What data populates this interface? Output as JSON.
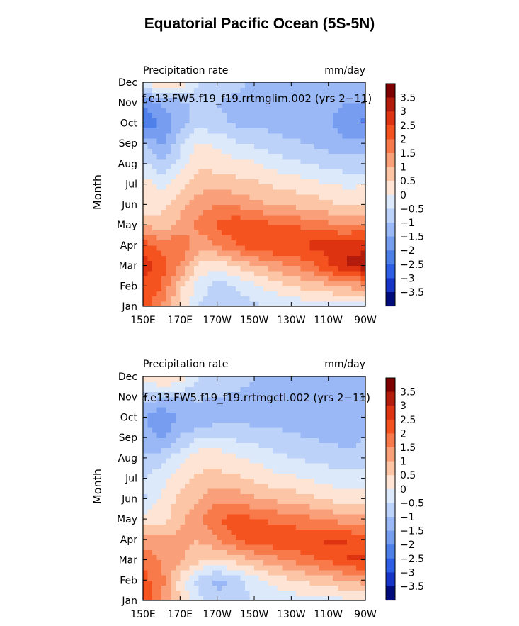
{
  "title": "Equatorial Pacific Ocean (5S-5N)",
  "colorbar": {
    "levels": [
      -3.5,
      -3,
      -2.5,
      -2,
      -1.5,
      -1,
      -0.5,
      0,
      0.5,
      1,
      1.5,
      2,
      2.5,
      3,
      3.5
    ],
    "labels": [
      "3.5",
      "3",
      "2.5",
      "2",
      "1.5",
      "1",
      "0.5",
      "0",
      "−0.5",
      "−1",
      "−1.5",
      "−2",
      "−2.5",
      "−3",
      "−3.5"
    ],
    "colors": [
      "#7f0000",
      "#b31b0c",
      "#dd3311",
      "#f4521f",
      "#f87a4a",
      "#f9a07a",
      "#fbc5a6",
      "#fde4d4",
      "#dce9fb",
      "#bcd2f9",
      "#9ab8f5",
      "#779df0",
      "#4f7fe9",
      "#2d5ee5",
      "#1734c7",
      "#000c7b"
    ]
  },
  "chart_data": [
    {
      "type": "heatmap",
      "subtitle": "f.e13.FW5.f19_f19.rrtmglim.002 (yrs 2−11)",
      "left_label": "Precipitation rate",
      "right_label": "mm/day",
      "ylabel": "Month",
      "x_ticks": [
        "150E",
        "170E",
        "170W",
        "150W",
        "130W",
        "110W",
        "90W"
      ],
      "y_ticks": [
        "Jan",
        "Feb",
        "Mar",
        "Apr",
        "May",
        "Jun",
        "Jul",
        "Aug",
        "Sep",
        "Oct",
        "Nov",
        "Dec"
      ],
      "x_lon": [
        150,
        160,
        170,
        180,
        190,
        200,
        210,
        220,
        230,
        240,
        250,
        260,
        270
      ],
      "values": [
        [
          2.2,
          1.6,
          0.4,
          -0.5,
          -0.8,
          -0.8,
          -0.6,
          -0.5,
          -0.4,
          -0.3,
          -0.3,
          -0.2,
          -0.2
        ],
        [
          2.4,
          2.0,
          0.6,
          -0.2,
          -0.7,
          -0.5,
          -0.1,
          0.2,
          0.5,
          0.7,
          0.9,
          1.1,
          1.3
        ],
        [
          2.8,
          2.2,
          1.5,
          0.4,
          0.2,
          0.5,
          0.9,
          1.2,
          1.5,
          1.8,
          2.4,
          3.1,
          3.3
        ],
        [
          2.2,
          1.8,
          2.0,
          1.2,
          1.5,
          2.0,
          2.3,
          2.5,
          2.5,
          2.6,
          2.7,
          2.8,
          2.9
        ],
        [
          1.0,
          0.6,
          1.2,
          1.6,
          2.1,
          2.4,
          2.3,
          2.1,
          2.0,
          1.8,
          1.6,
          1.5,
          1.5
        ],
        [
          0.1,
          0.4,
          0.8,
          1.3,
          1.5,
          1.4,
          1.2,
          1.0,
          0.9,
          0.8,
          0.6,
          0.4,
          0.4
        ],
        [
          0.3,
          -0.2,
          0.3,
          0.8,
          0.8,
          0.7,
          0.6,
          0.4,
          0.3,
          0.2,
          0.0,
          -0.1,
          0.0
        ],
        [
          -0.4,
          -0.9,
          -0.3,
          0.4,
          0.3,
          0.2,
          0.1,
          -0.2,
          -0.4,
          -0.5,
          -0.7,
          -0.8,
          -0.8
        ],
        [
          -1.0,
          -1.6,
          -0.6,
          0.1,
          -0.1,
          -0.4,
          -0.6,
          -0.8,
          -0.9,
          -1.0,
          -1.2,
          -1.3,
          -1.2
        ],
        [
          -2.4,
          -2.0,
          -1.2,
          -0.7,
          -0.9,
          -1.1,
          -1.1,
          -1.2,
          -1.3,
          -1.3,
          -1.4,
          -2.0,
          -2.1
        ],
        [
          -2.0,
          -1.4,
          -1.2,
          -0.9,
          -1.0,
          -1.1,
          -1.1,
          -1.1,
          -1.2,
          -1.2,
          -1.3,
          -1.5,
          -1.5
        ],
        [
          -0.2,
          0.6,
          0.4,
          -0.5,
          -0.8,
          -0.9,
          -1.1,
          -1.1,
          -1.2,
          -1.2,
          -1.3,
          -1.3,
          -1.2
        ]
      ]
    },
    {
      "type": "heatmap",
      "subtitle": "f.e13.FW5.f19_f19.rrtmgctl.002 (yrs 2−11)",
      "left_label": "Precipitation rate",
      "right_label": "mm/day",
      "ylabel": "Month",
      "x_ticks": [
        "150E",
        "170E",
        "170W",
        "150W",
        "130W",
        "110W",
        "90W"
      ],
      "y_ticks": [
        "Jan",
        "Feb",
        "Mar",
        "Apr",
        "May",
        "Jun",
        "Jul",
        "Aug",
        "Sep",
        "Oct",
        "Nov",
        "Dec"
      ],
      "x_lon": [
        150,
        160,
        170,
        180,
        190,
        200,
        210,
        220,
        230,
        240,
        250,
        260,
        270
      ],
      "values": [
        [
          2.6,
          1.5,
          0.4,
          -0.4,
          -0.8,
          -0.7,
          -0.5,
          -0.4,
          -0.3,
          -0.2,
          -0.2,
          -0.1,
          -0.1
        ],
        [
          2.2,
          1.7,
          0.3,
          -0.7,
          -1.2,
          -0.8,
          -0.2,
          0.2,
          0.4,
          0.6,
          0.8,
          1.0,
          1.2
        ],
        [
          1.9,
          1.5,
          1.1,
          0.6,
          0.4,
          0.7,
          1.0,
          1.3,
          1.6,
          1.9,
          2.1,
          2.5,
          2.6
        ],
        [
          1.3,
          1.1,
          1.2,
          1.0,
          1.5,
          2.0,
          2.3,
          2.4,
          2.4,
          2.5,
          2.6,
          2.5,
          2.3
        ],
        [
          0.3,
          0.3,
          0.9,
          1.3,
          2.0,
          2.2,
          2.1,
          1.9,
          1.8,
          1.6,
          1.4,
          1.3,
          1.2
        ],
        [
          -0.6,
          0.1,
          0.6,
          1.0,
          1.4,
          1.3,
          1.1,
          0.9,
          0.8,
          0.6,
          0.4,
          0.3,
          0.2
        ],
        [
          -0.5,
          -0.2,
          0.3,
          0.6,
          0.7,
          0.6,
          0.4,
          0.2,
          0.1,
          0.0,
          -0.2,
          -0.3,
          -0.2
        ],
        [
          -0.9,
          -0.7,
          -0.2,
          0.3,
          0.3,
          0.1,
          -0.1,
          -0.3,
          -0.5,
          -0.6,
          -0.7,
          -0.8,
          -0.8
        ],
        [
          -1.2,
          -1.6,
          -1.0,
          -0.5,
          -0.4,
          -0.6,
          -0.7,
          -0.8,
          -0.9,
          -1.0,
          -1.1,
          -1.2,
          -1.0
        ],
        [
          -1.4,
          -2.0,
          -1.4,
          -1.6,
          -1.2,
          -1.2,
          -1.2,
          -1.2,
          -1.3,
          -1.3,
          -1.3,
          -1.4,
          -1.2
        ],
        [
          -0.8,
          -0.9,
          -1.0,
          -0.9,
          -1.0,
          -1.1,
          -1.1,
          -1.2,
          -1.2,
          -1.2,
          -1.3,
          -1.3,
          -1.2
        ],
        [
          0.2,
          0.7,
          0.5,
          -0.5,
          -0.7,
          -0.8,
          -1.0,
          -1.1,
          -1.1,
          -1.2,
          -1.2,
          -1.2,
          -1.1
        ]
      ]
    }
  ]
}
